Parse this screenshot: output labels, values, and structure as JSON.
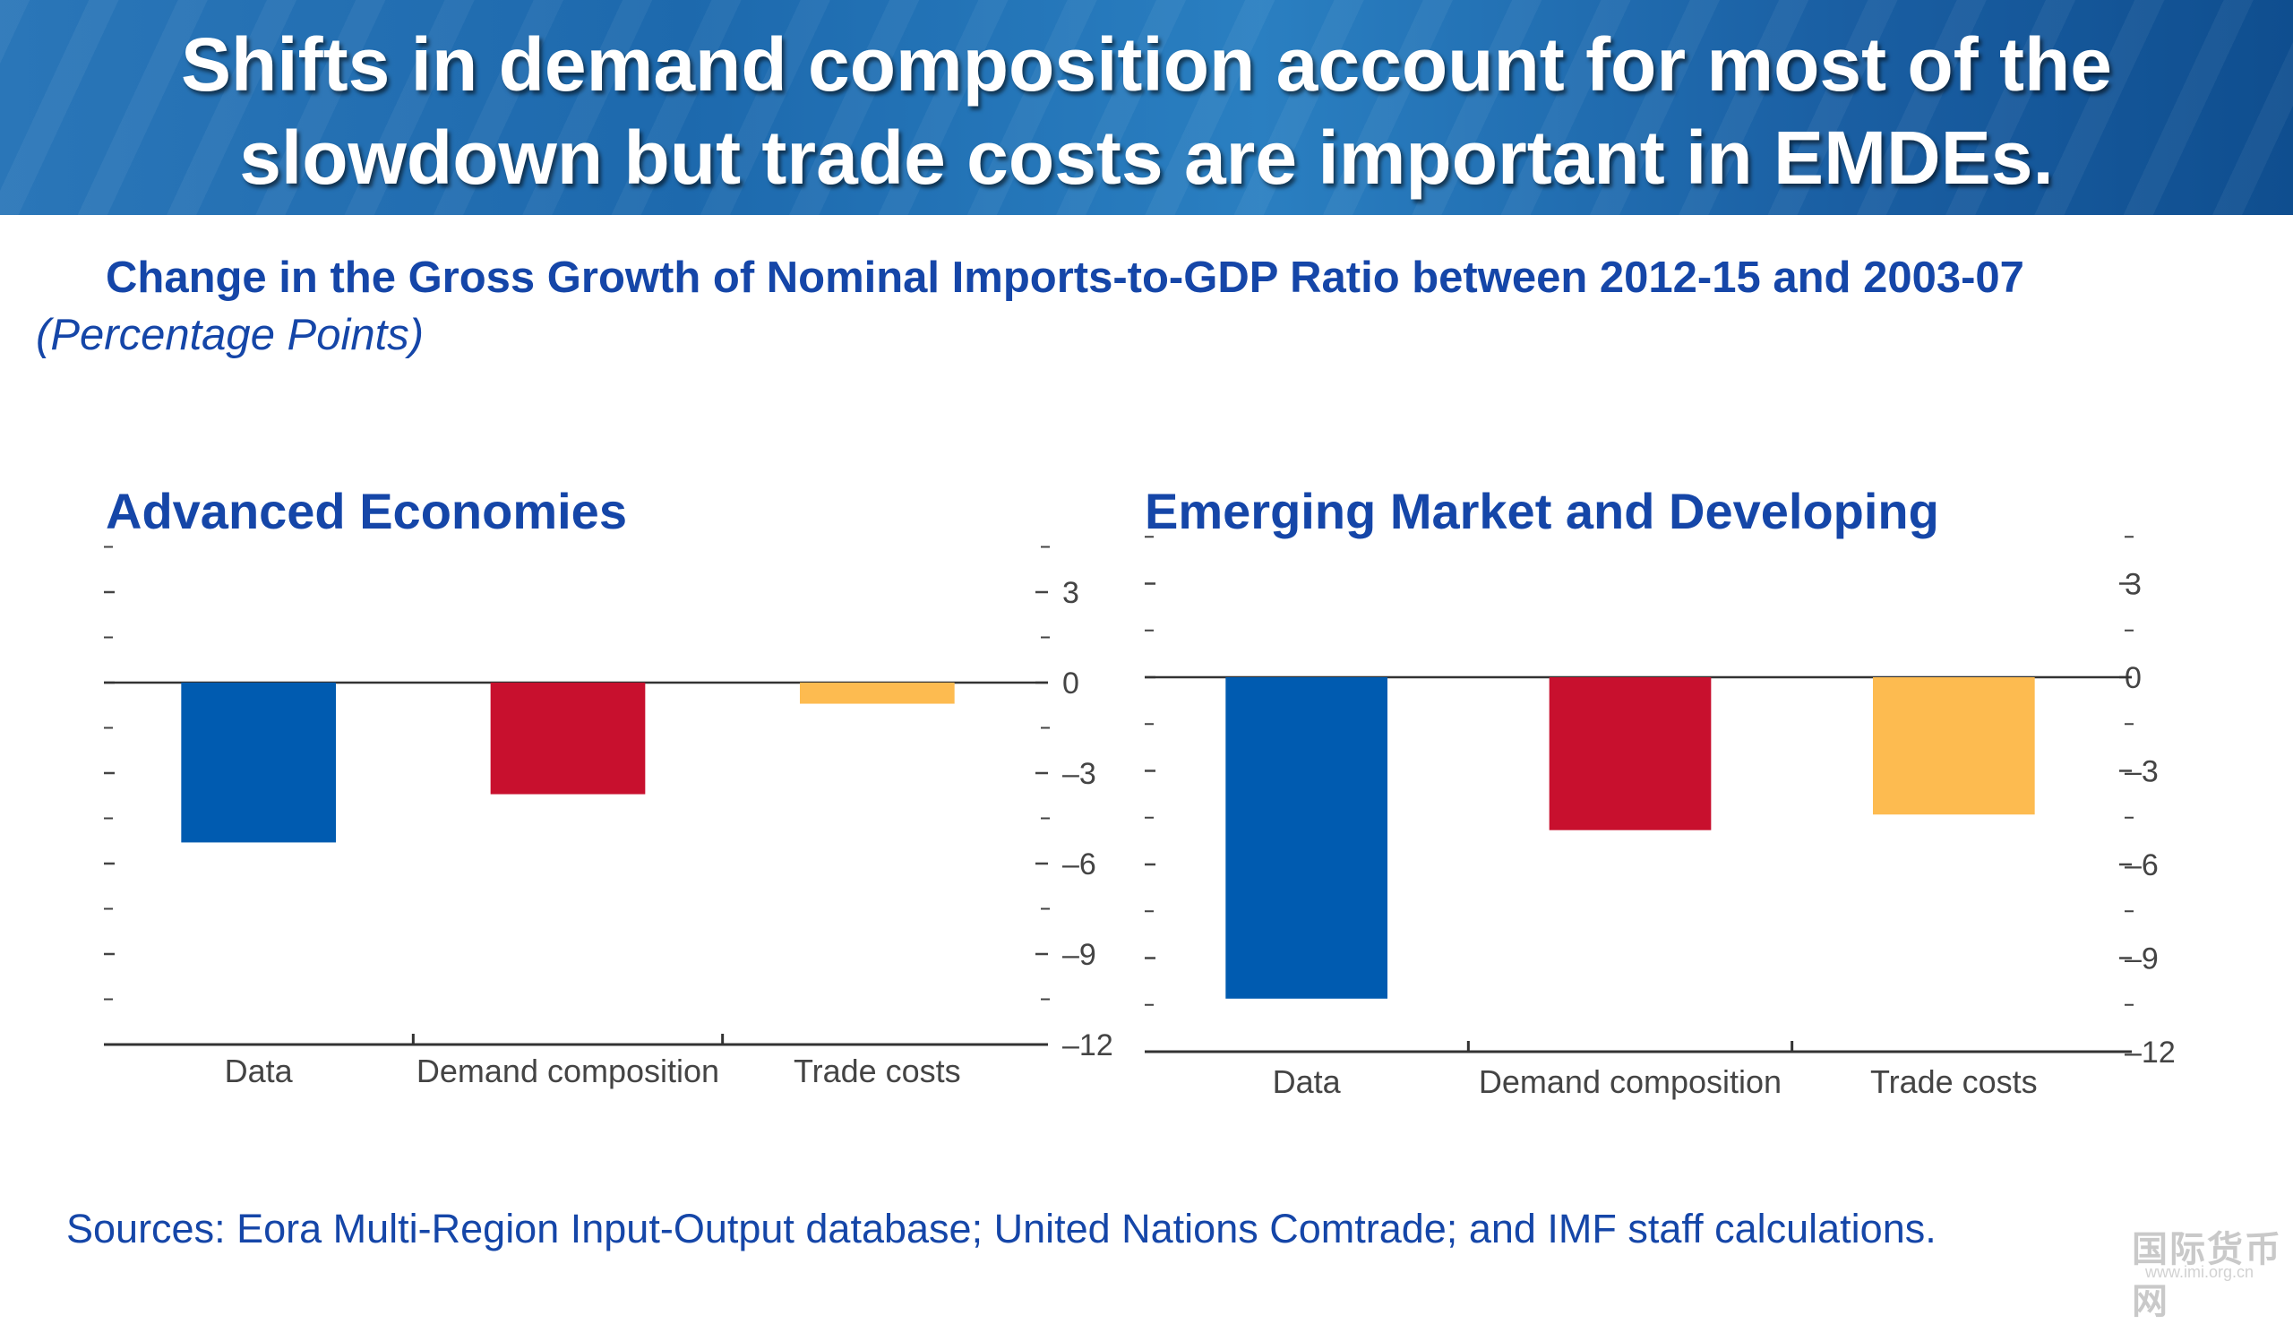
{
  "header": {
    "title": "Shifts in demand composition account for most of the slowdown but trade costs are important in EMDEs."
  },
  "subtitle": "Change in the Gross Growth of Nominal Imports-to-GDP Ratio between 2012-15 and 2003-07",
  "units": "(Percentage Points)",
  "colors": {
    "data": "#005bb0",
    "demand": "#c8102e",
    "trade": "#fdbb50",
    "title": "#1546a8"
  },
  "chart_data": [
    {
      "type": "bar",
      "title": "Advanced Economies",
      "categories": [
        "Data",
        "Demand composition",
        "Trade costs"
      ],
      "values": [
        -5.3,
        -3.7,
        -0.7
      ],
      "ylim": [
        -12,
        4
      ],
      "yticks": [
        "3",
        "0",
        "–3",
        "–6",
        "–9",
        "–12"
      ],
      "grid": false
    },
    {
      "type": "bar",
      "title": "Emerging Market and Developing",
      "categories": [
        "Data",
        "Demand composition",
        "Trade costs"
      ],
      "values": [
        -10.3,
        -4.9,
        -4.4
      ],
      "ylim": [
        -12,
        4
      ],
      "yticks": [
        "3",
        "0",
        "–3",
        "–6",
        "–9",
        "–12"
      ],
      "grid": false
    }
  ],
  "sources": "Sources: Eora Multi-Region Input-Output database; United Nations Comtrade; and IMF staff calculations.",
  "watermark": "国际货币网",
  "watermark_url": "www.imi.org.cn"
}
